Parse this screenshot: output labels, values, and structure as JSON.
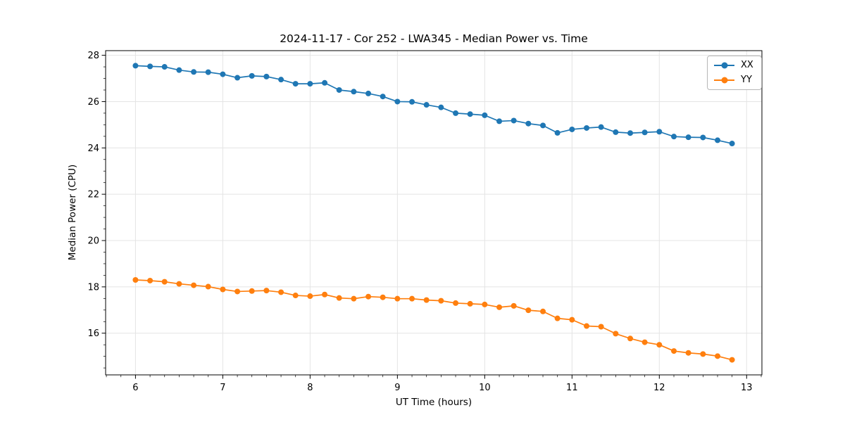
{
  "figure": {
    "title": "2024-11-17 - Cor 252 - LWA345 - Median Power vs. Time",
    "xlabel": "UT Time (hours)",
    "ylabel": "Median Power (CPU)"
  },
  "chart_data": {
    "type": "line",
    "title": "2024-11-17 - Cor 252 - LWA345 - Median Power vs. Time",
    "xlabel": "UT Time (hours)",
    "ylabel": "Median Power (CPU)",
    "xlim": [
      5.658,
      13.175
    ],
    "ylim": [
      14.2,
      28.2
    ],
    "x_ticks": [
      6,
      7,
      8,
      9,
      10,
      11,
      12,
      13
    ],
    "y_ticks": [
      16,
      18,
      20,
      22,
      24,
      26,
      28
    ],
    "minor_tick_step_x": 0.16667,
    "minor_tick_step_y": 0.5,
    "grid": true,
    "grid_color": "#e4e4e4",
    "legend_position": "upper right",
    "x": [
      6.0,
      6.167,
      6.333,
      6.5,
      6.667,
      6.833,
      7.0,
      7.167,
      7.333,
      7.5,
      7.667,
      7.833,
      8.0,
      8.167,
      8.333,
      8.5,
      8.667,
      8.833,
      9.0,
      9.167,
      9.333,
      9.5,
      9.667,
      9.833,
      10.0,
      10.167,
      10.333,
      10.5,
      10.667,
      10.833,
      11.0,
      11.167,
      11.333,
      11.5,
      11.667,
      11.833,
      12.0,
      12.167,
      12.333,
      12.5,
      12.667,
      12.833
    ],
    "series": [
      {
        "name": "XX",
        "color": "#1f77b4",
        "values": [
          27.55,
          27.52,
          27.5,
          27.36,
          27.28,
          27.27,
          27.18,
          27.03,
          27.11,
          27.08,
          26.95,
          26.77,
          26.77,
          26.81,
          26.5,
          26.43,
          26.35,
          26.22,
          26.0,
          25.99,
          25.86,
          25.75,
          25.5,
          25.46,
          25.41,
          25.15,
          25.18,
          25.05,
          24.97,
          24.65,
          24.8,
          24.86,
          24.9,
          24.68,
          24.64,
          24.67,
          24.7,
          24.49,
          24.46,
          24.45,
          24.33,
          24.19
        ]
      },
      {
        "name": "YY",
        "color": "#ff7f0e",
        "values": [
          18.3,
          18.27,
          18.22,
          18.13,
          18.07,
          18.01,
          17.89,
          17.8,
          17.82,
          17.84,
          17.77,
          17.63,
          17.6,
          17.67,
          17.52,
          17.49,
          17.58,
          17.55,
          17.49,
          17.49,
          17.43,
          17.4,
          17.3,
          17.27,
          17.24,
          17.12,
          17.18,
          16.99,
          16.94,
          16.64,
          16.58,
          16.31,
          16.28,
          15.98,
          15.77,
          15.61,
          15.5,
          15.23,
          15.15,
          15.1,
          15.01,
          14.85
        ]
      }
    ]
  }
}
